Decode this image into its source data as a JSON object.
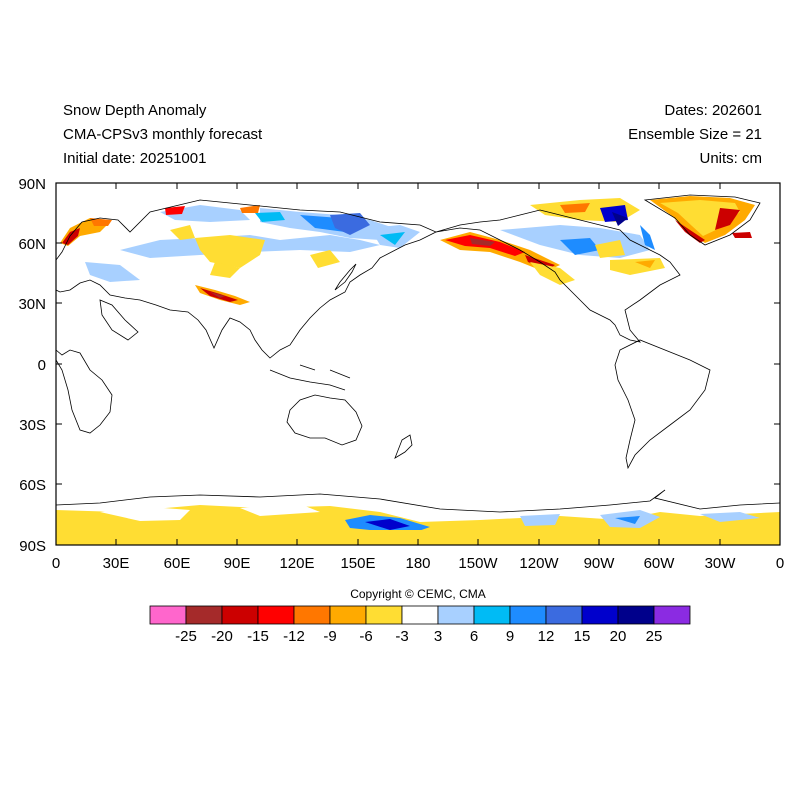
{
  "header": {
    "title": "Snow Depth Anomaly",
    "model": "CMA-CPSv3 monthly forecast",
    "initial": "Initial date: 20251001",
    "dates": "Dates: 202601",
    "ensemble": "Ensemble Size = 21",
    "units": "Units: cm"
  },
  "axes": {
    "lat_labels": [
      "90N",
      "60N",
      "30N",
      "0",
      "30S",
      "60S",
      "90S"
    ],
    "lon_labels": [
      "0",
      "30E",
      "60E",
      "90E",
      "120E",
      "150E",
      "180",
      "150W",
      "120W",
      "90W",
      "60W",
      "30W",
      "0"
    ]
  },
  "colorbar": {
    "labels": [
      "-25",
      "-20",
      "-15",
      "-12",
      "-9",
      "-6",
      "-3",
      "3",
      "6",
      "9",
      "12",
      "15",
      "20",
      "25"
    ],
    "colors": [
      "#ff66cc",
      "#a52a2a",
      "#cc0000",
      "#ff0000",
      "#ff7700",
      "#ffaa00",
      "#ffdd33",
      "#ffffff",
      "#a8d0ff",
      "#00bbf5",
      "#1e8cff",
      "#3b6be0",
      "#0000cc",
      "#00008b",
      "#8b2be2"
    ]
  },
  "copyright": "Copyright © CEMC, CMA"
}
